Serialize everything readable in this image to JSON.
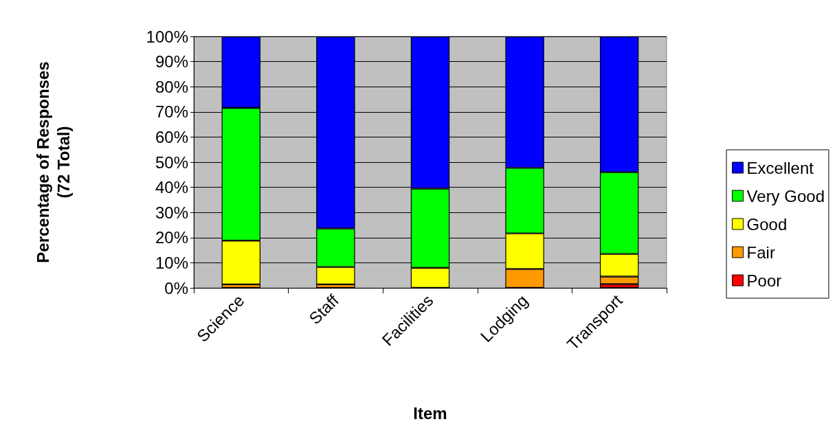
{
  "chart_data": {
    "type": "bar",
    "stacked": true,
    "xlabel": "Item",
    "ylabel": "Percentage of Responses\n(72 Total)",
    "categories": [
      "Science",
      "Staff",
      "Facilities",
      "Lodging",
      "Transport"
    ],
    "series": [
      {
        "name": "Poor",
        "color": "#ff0000",
        "values": [
          0,
          0,
          0,
          0,
          1.5
        ]
      },
      {
        "name": "Fair",
        "color": "#ff9900",
        "values": [
          1.4,
          1.4,
          0,
          7.5,
          3
        ]
      },
      {
        "name": "Good",
        "color": "#ffff00",
        "values": [
          17.4,
          6.9,
          8,
          14.2,
          9
        ]
      },
      {
        "name": "Very Good",
        "color": "#00ff00",
        "values": [
          52.8,
          15.3,
          31.5,
          26,
          32.5
        ]
      },
      {
        "name": "Excellent",
        "color": "#0000ff",
        "values": [
          28.4,
          76.4,
          60.5,
          52.3,
          54
        ]
      }
    ],
    "ylim": [
      0,
      100
    ],
    "yticks": [
      {
        "value": 0,
        "label": "0%"
      },
      {
        "value": 10,
        "label": "10%"
      },
      {
        "value": 20,
        "label": "20%"
      },
      {
        "value": 30,
        "label": "30%"
      },
      {
        "value": 40,
        "label": "40%"
      },
      {
        "value": 50,
        "label": "50%"
      },
      {
        "value": 60,
        "label": "60%"
      },
      {
        "value": 70,
        "label": "70%"
      },
      {
        "value": 80,
        "label": "80%"
      },
      {
        "value": 90,
        "label": "90%"
      },
      {
        "value": 100,
        "label": "100%"
      }
    ],
    "grid": "y",
    "legend": "right"
  }
}
